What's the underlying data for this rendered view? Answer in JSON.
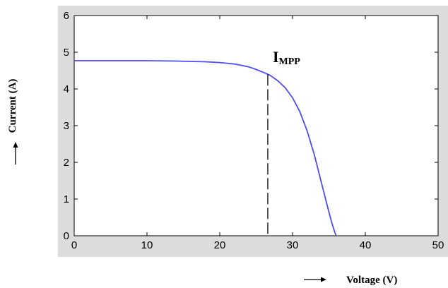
{
  "chart_data": {
    "type": "line",
    "title": "",
    "xlabel": "Voltage (V)",
    "ylabel": "Current (A)",
    "xlim": [
      0,
      50
    ],
    "ylim": [
      0,
      6
    ],
    "x_ticks": [
      0,
      10,
      20,
      30,
      40,
      50
    ],
    "y_ticks": [
      0,
      1,
      2,
      3,
      4,
      5,
      6
    ],
    "grid": false,
    "legend": "none",
    "series": [
      {
        "name": "",
        "color": "#4c4cf5",
        "x": [
          0,
          5,
          10,
          14,
          18,
          20,
          22,
          24,
          25,
          26,
          26.6,
          27,
          28,
          29,
          30,
          31,
          32,
          33,
          34,
          34.8,
          35.4,
          35.8,
          36
        ],
        "y": [
          4.77,
          4.77,
          4.77,
          4.76,
          4.74,
          4.72,
          4.68,
          4.6,
          4.53,
          4.45,
          4.4,
          4.36,
          4.22,
          4.03,
          3.76,
          3.38,
          2.86,
          2.2,
          1.42,
          0.8,
          0.35,
          0.1,
          0
        ]
      }
    ],
    "annotations": [
      {
        "label_main": "I",
        "label_sub": "MPP",
        "x": 26.6,
        "y": 4.4
      }
    ]
  }
}
